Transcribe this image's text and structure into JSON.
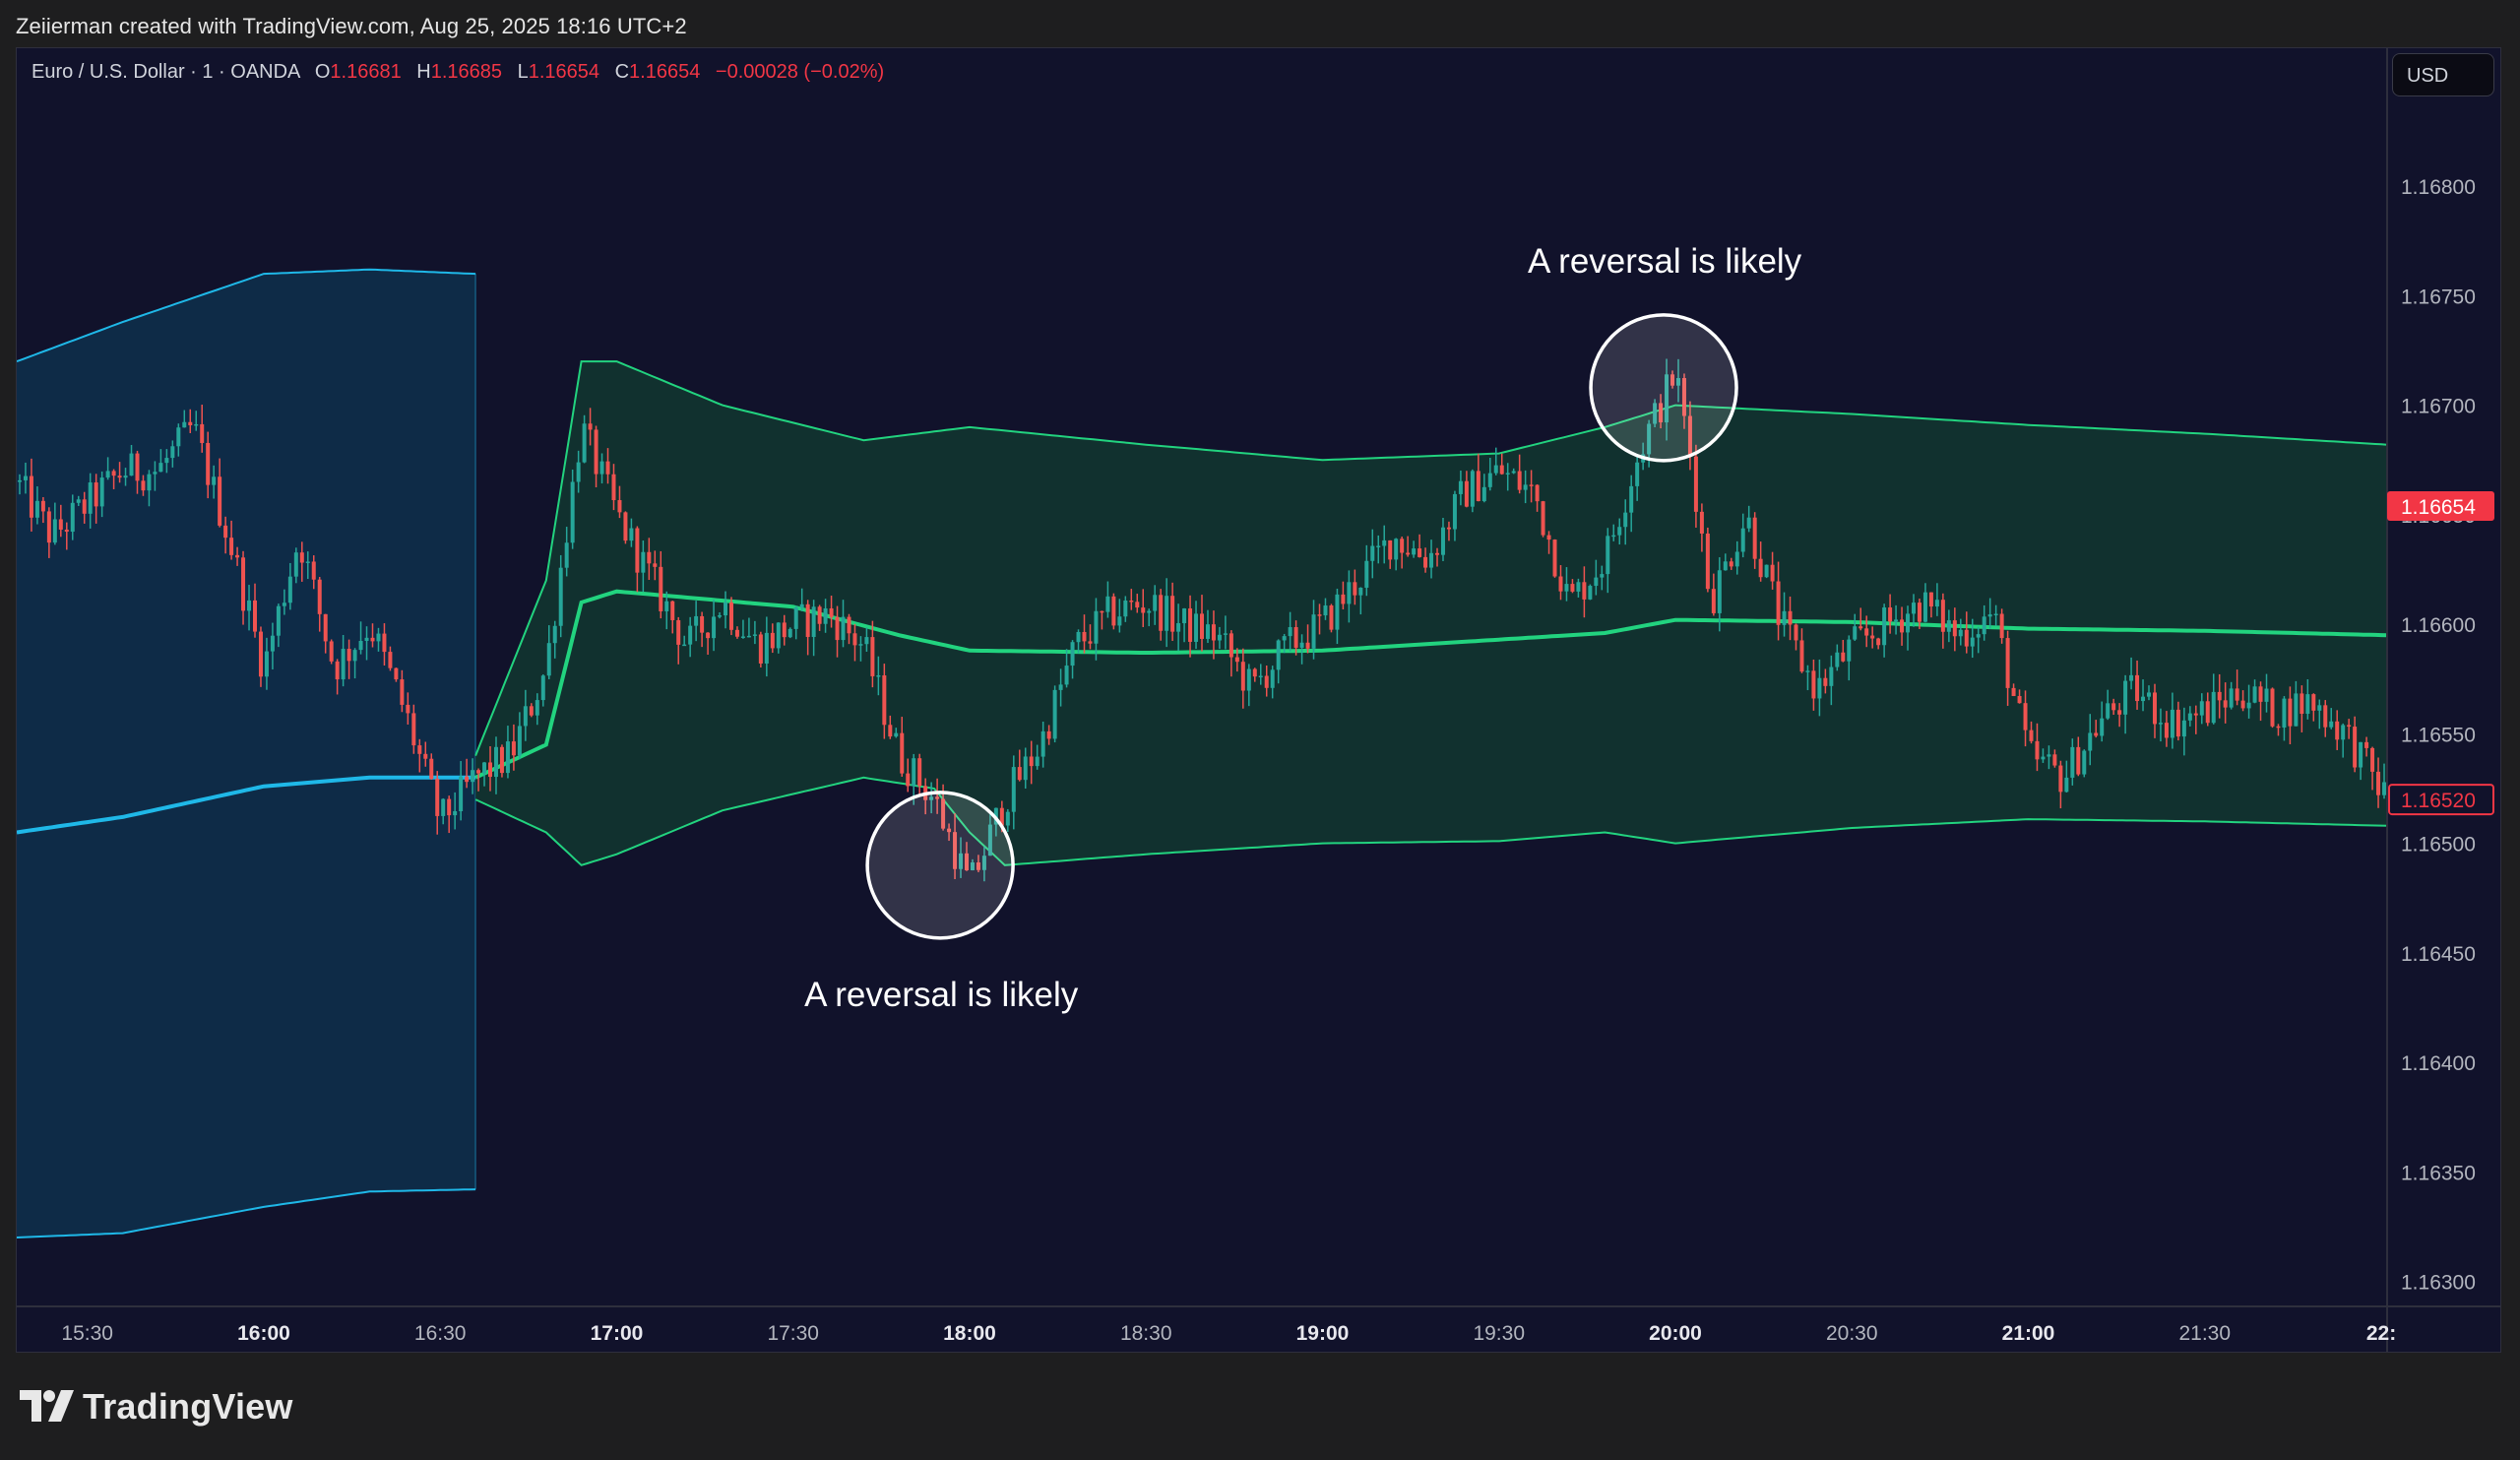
{
  "header": {
    "created_by": "Zeiierman created with TradingView.com, Aug 25, 2025 18:16 UTC+2"
  },
  "legend": {
    "symbol": "Euro / U.S. Dollar · 1 · OANDA",
    "o_label": "O",
    "o_value": "1.16681",
    "h_label": "H",
    "h_value": "1.16685",
    "l_label": "L",
    "l_value": "1.16654",
    "c_label": "C",
    "c_value": "1.16654",
    "change": "−0.00028 (−0.02%)"
  },
  "currency_button": "USD",
  "annotations": {
    "top_text": "A reversal is likely",
    "bottom_text": "A reversal is likely"
  },
  "footer": {
    "brand": "TradingView"
  },
  "colors": {
    "background": "#11122b",
    "up": "#26a69a",
    "down": "#ef5350",
    "band_active": "#22d37f",
    "band_active_fill": "#12342f",
    "band_prev": "#1fb8e8",
    "band_prev_fill": "#0f2d49",
    "price_label": "#f23645"
  },
  "chart_data": {
    "type": "candlestick",
    "symbol": "EURUSD",
    "interval": "1",
    "x_tick_labels": [
      "15:30",
      "16:00",
      "16:30",
      "17:00",
      "17:30",
      "18:00",
      "18:30",
      "19:00",
      "19:30",
      "20:00",
      "20:30",
      "21:00",
      "21:30",
      "22:"
    ],
    "x_tick_bold": [
      false,
      true,
      false,
      true,
      false,
      true,
      false,
      true,
      false,
      true,
      false,
      true,
      false,
      true
    ],
    "y_tick_labels": [
      "1.16800",
      "1.16750",
      "1.16700",
      "1.16650",
      "1.16600",
      "1.16550",
      "1.16500",
      "1.16450",
      "1.16400",
      "1.16350",
      "1.16300"
    ],
    "ylim": [
      1.16289,
      1.16863
    ],
    "xlim": [
      "15:18",
      "22:01"
    ],
    "price_labels": {
      "last": "1.16654",
      "last_value": 1.16654,
      "current": "1.16520",
      "current_value": 1.1652
    },
    "price_path": [
      [
        "15:18",
        1.16665
      ],
      [
        "15:24",
        1.1664
      ],
      [
        "15:30",
        1.16655
      ],
      [
        "15:36",
        1.1667
      ],
      [
        "15:42",
        1.1667
      ],
      [
        "15:48",
        1.1669
      ],
      [
        "15:54",
        1.1664
      ],
      [
        "16:00",
        1.1658
      ],
      [
        "16:06",
        1.1664
      ],
      [
        "16:12",
        1.1658
      ],
      [
        "16:18",
        1.166
      ],
      [
        "16:24",
        1.1656
      ],
      [
        "16:30",
        1.1651
      ],
      [
        "16:36",
        1.1653
      ],
      [
        "16:42",
        1.1654
      ],
      [
        "16:48",
        1.1658
      ],
      [
        "16:54",
        1.1669
      ],
      [
        "17:00",
        1.1665
      ],
      [
        "17:06",
        1.1662
      ],
      [
        "17:12",
        1.1659
      ],
      [
        "17:18",
        1.1661
      ],
      [
        "17:24",
        1.1659
      ],
      [
        "17:30",
        1.166
      ],
      [
        "17:36",
        1.16605
      ],
      [
        "17:42",
        1.1659
      ],
      [
        "17:48",
        1.1654
      ],
      [
        "17:54",
        1.1652
      ],
      [
        "18:00",
        1.1648
      ],
      [
        "18:06",
        1.1652
      ],
      [
        "18:12",
        1.16545
      ],
      [
        "18:18",
        1.1659
      ],
      [
        "18:24",
        1.16605
      ],
      [
        "18:30",
        1.1661
      ],
      [
        "18:36",
        1.166
      ],
      [
        "18:42",
        1.16595
      ],
      [
        "18:48",
        1.1657
      ],
      [
        "18:54",
        1.1659
      ],
      [
        "19:00",
        1.166
      ],
      [
        "19:06",
        1.1662
      ],
      [
        "19:12",
        1.1664
      ],
      [
        "19:18",
        1.1663
      ],
      [
        "19:24",
        1.1666
      ],
      [
        "19:30",
        1.1667
      ],
      [
        "19:36",
        1.1666
      ],
      [
        "19:42",
        1.1661
      ],
      [
        "19:48",
        1.1663
      ],
      [
        "19:54",
        1.1668
      ],
      [
        "20:00",
        1.16715
      ],
      [
        "20:03",
        1.1667
      ],
      [
        "20:06",
        1.1661
      ],
      [
        "20:12",
        1.1665
      ],
      [
        "20:18",
        1.166
      ],
      [
        "20:24",
        1.1657
      ],
      [
        "20:30",
        1.1659
      ],
      [
        "20:36",
        1.166
      ],
      [
        "20:42",
        1.1661
      ],
      [
        "20:48",
        1.16595
      ],
      [
        "20:54",
        1.16605
      ],
      [
        "21:00",
        1.1654
      ],
      [
        "21:06",
        1.1653
      ],
      [
        "21:12",
        1.16555
      ],
      [
        "21:18",
        1.1657
      ],
      [
        "21:24",
        1.16555
      ],
      [
        "21:30",
        1.1656
      ],
      [
        "21:36",
        1.1657
      ],
      [
        "21:42",
        1.1656
      ],
      [
        "21:48",
        1.16565
      ],
      [
        "21:54",
        1.1655
      ],
      [
        "22:01",
        1.1652
      ]
    ],
    "bands": [
      {
        "start": "15:18",
        "end": "16:36",
        "color": "band_prev",
        "upper": [
          [
            "15:18",
            1.1672
          ],
          [
            "15:36",
            1.16738
          ],
          [
            "16:00",
            1.1676
          ],
          [
            "16:18",
            1.16762
          ],
          [
            "16:36",
            1.1676
          ]
        ],
        "mid": [
          [
            "15:18",
            1.16505
          ],
          [
            "15:36",
            1.16512
          ],
          [
            "16:00",
            1.16526
          ],
          [
            "16:18",
            1.1653
          ],
          [
            "16:36",
            1.1653
          ]
        ],
        "lower": [
          [
            "15:18",
            1.1632
          ],
          [
            "15:36",
            1.16322
          ],
          [
            "16:00",
            1.16334
          ],
          [
            "16:18",
            1.16341
          ],
          [
            "16:36",
            1.16342
          ]
        ]
      },
      {
        "start": "16:36",
        "end": "22:01",
        "color": "band_active",
        "upper": [
          [
            "16:36",
            1.1654
          ],
          [
            "16:48",
            1.1662
          ],
          [
            "16:54",
            1.1672
          ],
          [
            "17:00",
            1.1672
          ],
          [
            "17:18",
            1.167
          ],
          [
            "17:42",
            1.16684
          ],
          [
            "18:00",
            1.1669
          ],
          [
            "18:30",
            1.16682
          ],
          [
            "19:00",
            1.16675
          ],
          [
            "19:30",
            1.16678
          ],
          [
            "19:48",
            1.1669
          ],
          [
            "20:00",
            1.167
          ],
          [
            "20:30",
            1.16696
          ],
          [
            "21:00",
            1.16691
          ],
          [
            "21:30",
            1.16687
          ],
          [
            "22:01",
            1.16682
          ]
        ],
        "mid": [
          [
            "16:36",
            1.1653
          ],
          [
            "16:48",
            1.16545
          ],
          [
            "16:54",
            1.1661
          ],
          [
            "17:00",
            1.16615
          ],
          [
            "17:30",
            1.16608
          ],
          [
            "17:48",
            1.16595
          ],
          [
            "18:00",
            1.16588
          ],
          [
            "18:30",
            1.16587
          ],
          [
            "19:00",
            1.16588
          ],
          [
            "19:30",
            1.16593
          ],
          [
            "19:48",
            1.16596
          ],
          [
            "20:00",
            1.16602
          ],
          [
            "20:30",
            1.16601
          ],
          [
            "21:00",
            1.16598
          ],
          [
            "21:30",
            1.16597
          ],
          [
            "22:01",
            1.16595
          ]
        ],
        "lower": [
          [
            "16:36",
            1.1652
          ],
          [
            "16:48",
            1.16505
          ],
          [
            "16:54",
            1.1649
          ],
          [
            "17:00",
            1.16495
          ],
          [
            "17:18",
            1.16515
          ],
          [
            "17:42",
            1.1653
          ],
          [
            "17:54",
            1.16525
          ],
          [
            "18:00",
            1.16505
          ],
          [
            "18:06",
            1.1649
          ],
          [
            "18:30",
            1.16495
          ],
          [
            "19:00",
            1.165
          ],
          [
            "19:30",
            1.16501
          ],
          [
            "19:48",
            1.16505
          ],
          [
            "20:00",
            1.165
          ],
          [
            "20:30",
            1.16507
          ],
          [
            "21:00",
            1.16511
          ],
          [
            "21:30",
            1.1651
          ],
          [
            "22:01",
            1.16508
          ]
        ]
      }
    ],
    "markers": [
      {
        "time": "17:55",
        "price": 1.1649,
        "label": "A reversal is likely",
        "label_position": "below"
      },
      {
        "time": "19:58",
        "price": 1.16708,
        "label": "A reversal is likely",
        "label_position": "above"
      }
    ]
  }
}
